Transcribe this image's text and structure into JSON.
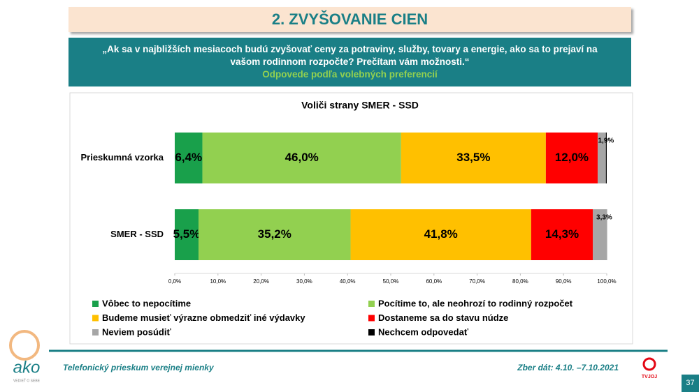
{
  "header": {
    "title": "2. ZVYŠOVANIE CIEN"
  },
  "question": {
    "text": "„Ak sa v najbližších mesiacoch budú zvyšovať ceny za potraviny, služby, tovary a energie, ako sa to prejaví na vašom rodinnom rozpočte? Prečítam vám možnosti.“",
    "subtitle": "Odpovede podľa volebných preferencií"
  },
  "chart_data": {
    "type": "stacked_bar",
    "orientation": "horizontal",
    "title": "Voliči strany SMER - SSD",
    "categories": [
      "Prieskumná vzorka",
      "SMER - SSD"
    ],
    "series": [
      {
        "name": "Vôbec to nepocítime",
        "color": "#19a04b",
        "values": [
          6.4,
          5.5
        ],
        "value_labels": [
          "6,4%",
          "5,5%"
        ]
      },
      {
        "name": "Pocítime to, ale neohrozí to rodinný rozpočet",
        "color": "#92d050",
        "values": [
          46.0,
          35.2
        ],
        "value_labels": [
          "46,0%",
          "35,2%"
        ]
      },
      {
        "name": "Budeme musieť výrazne obmedziť iné výdavky",
        "color": "#ffc000",
        "values": [
          33.5,
          41.8
        ],
        "value_labels": [
          "33,5%",
          "41,8%"
        ]
      },
      {
        "name": "Dostaneme sa do stavu núdze",
        "color": "#ff0000",
        "values": [
          12.0,
          14.3
        ],
        "value_labels": [
          "12,0%",
          "14,3%"
        ]
      },
      {
        "name": "Neviem posúdiť",
        "color": "#a6a6a6",
        "values": [
          1.9,
          3.3
        ],
        "value_labels": [
          "1,9%",
          "3,3%"
        ]
      },
      {
        "name": "Nechcem odpovedať",
        "color": "#000000",
        "values": [
          0.2,
          0
        ],
        "value_labels": [
          null,
          null
        ]
      }
    ],
    "xlim": [
      0,
      100
    ],
    "xticks": [
      {
        "value": 0,
        "label": "0,0%"
      },
      {
        "value": 10,
        "label": "10,0%"
      },
      {
        "value": 20,
        "label": "20,0%"
      },
      {
        "value": 30,
        "label": "30,0%"
      },
      {
        "value": 40,
        "label": "40,0%"
      },
      {
        "value": 50,
        "label": "50,0%"
      },
      {
        "value": 60,
        "label": "60,0%"
      },
      {
        "value": 70,
        "label": "70,0%"
      },
      {
        "value": 80,
        "label": "80,0%"
      },
      {
        "value": 90,
        "label": "90,0%"
      },
      {
        "value": 100,
        "label": "100,0%"
      }
    ],
    "grid": false,
    "legend": "bottom"
  },
  "footer": {
    "survey": "Telefonický prieskum verejnej mienky",
    "dates": "Zber dát: 4.10. –7.10.2021",
    "page": "37"
  },
  "logo": {
    "name": "ako",
    "tagline": "VEDIEŤ O SEBE"
  },
  "tv_logo": "TVJOJ"
}
